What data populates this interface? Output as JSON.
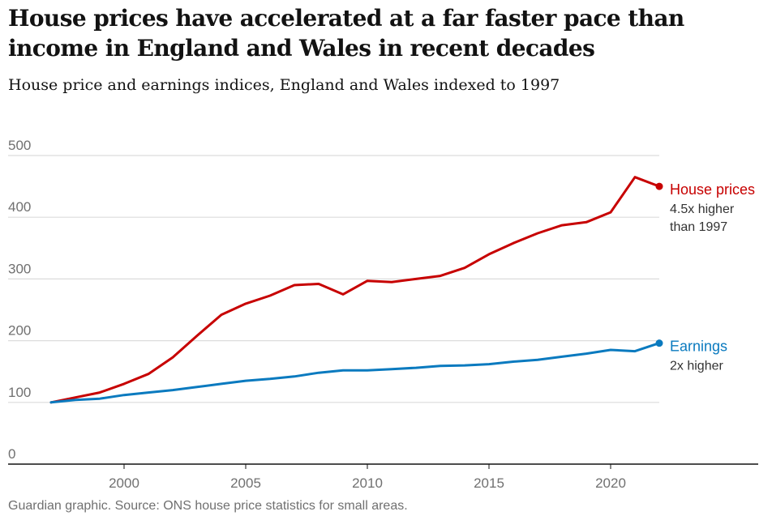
{
  "title": "House prices have accelerated at a far faster pace than income in England and Wales in recent decades",
  "subtitle": "House price and earnings indices, England and Wales indexed to 1997",
  "source": "Guardian graphic. Source: ONS house price statistics for small areas.",
  "colors": {
    "house": "#c70000",
    "earnings": "#0a7abf",
    "grid": "#dcdcdc",
    "axis": "#121212"
  },
  "chart_data": {
    "type": "line",
    "title": "House prices have accelerated at a far faster pace than income in England and Wales in recent decades",
    "subtitle": "House price and earnings indices, England and Wales indexed to 1997",
    "xlabel": "",
    "ylabel": "",
    "xlim": [
      1995.5,
      2028
    ],
    "ylim": [
      0,
      500
    ],
    "yticks": [
      0,
      100,
      200,
      300,
      400,
      500
    ],
    "xticks": [
      2000,
      2005,
      2010,
      2015,
      2020
    ],
    "grid": true,
    "legend": "direct labels at line ends",
    "x": [
      1997,
      1998,
      1999,
      2000,
      2001,
      2002,
      2003,
      2004,
      2005,
      2006,
      2007,
      2008,
      2009,
      2010,
      2011,
      2012,
      2013,
      2014,
      2015,
      2016,
      2017,
      2018,
      2019,
      2020,
      2021,
      2022
    ],
    "series": [
      {
        "name": "House prices",
        "note_lines": [
          "4.5x higher",
          "than 1997"
        ],
        "color": "#c70000",
        "values": [
          100,
          108,
          116,
          130,
          146,
          173,
          208,
          242,
          260,
          273,
          290,
          292,
          275,
          297,
          295,
          300,
          305,
          318,
          340,
          358,
          374,
          387,
          392,
          408,
          465,
          450
        ]
      },
      {
        "name": "Earnings",
        "note_lines": [
          "2x higher"
        ],
        "color": "#0a7abf",
        "values": [
          100,
          104,
          106,
          112,
          116,
          120,
          125,
          130,
          135,
          138,
          142,
          148,
          152,
          152,
          154,
          156,
          159,
          160,
          162,
          166,
          169,
          174,
          179,
          185,
          183,
          196
        ]
      }
    ]
  }
}
